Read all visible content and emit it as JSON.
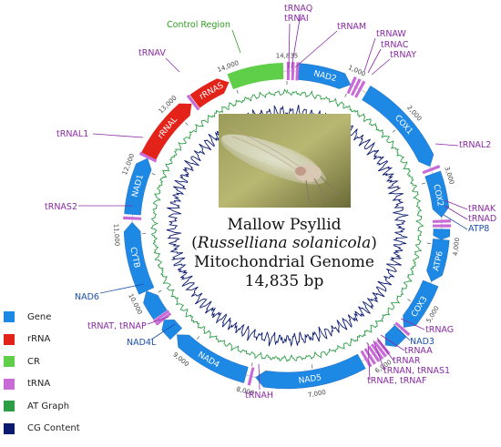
{
  "title": {
    "line1": "Mallow Psyllid",
    "line2_open": "(",
    "line2_italic": "Russelliana solanicola",
    "line2_close": ")",
    "line3": "Mitochondrial Genome",
    "line4": "14,835 bp"
  },
  "genome_length": 14835,
  "colors": {
    "gene": "#1e88e5",
    "rrna": "#e3231a",
    "cr": "#5fcf4a",
    "trna": "#c86bd6",
    "at_graph": "#2e9e46",
    "cg_content": "#0b1a6e",
    "trna_label": "#8a2aa3",
    "cr_label": "#2e9e1f"
  },
  "genes": [
    {
      "name": "NAD2",
      "start": 180,
      "end": 1000,
      "kind": "gene"
    },
    {
      "name": "COX1",
      "start": 1270,
      "end": 2780,
      "kind": "gene"
    },
    {
      "name": "COX2",
      "start": 2900,
      "end": 3580,
      "kind": "gene"
    },
    {
      "name": "ATP8",
      "start": 3760,
      "end": 3920,
      "kind": "gene"
    },
    {
      "name": "ATP6",
      "start": 3920,
      "end": 4580,
      "kind": "gene"
    },
    {
      "name": "COX3",
      "start": 4610,
      "end": 5400,
      "kind": "gene"
    },
    {
      "name": "NAD3",
      "start": 5480,
      "end": 5790,
      "kind": "gene"
    },
    {
      "name": "NAD5",
      "start": 6230,
      "end": 7900,
      "kind": "gene"
    },
    {
      "name": "NAD4",
      "start": 8050,
      "end": 9280,
      "kind": "gene"
    },
    {
      "name": "NAD4L",
      "start": 9300,
      "end": 9580,
      "kind": "gene"
    },
    {
      "name": "NAD6",
      "start": 9680,
      "end": 10100,
      "kind": "gene"
    },
    {
      "name": "CYTB",
      "start": 10100,
      "end": 11180,
      "kind": "gene"
    },
    {
      "name": "NAD1",
      "start": 11300,
      "end": 12190,
      "kind": "gene"
    },
    {
      "name": "rRNAL",
      "start": 12230,
      "end": 13270,
      "kind": "rrna"
    },
    {
      "name": "rRNAS",
      "start": 13330,
      "end": 13930,
      "kind": "rrna"
    },
    {
      "name": "",
      "start": 13950,
      "end": 14780,
      "kind": "cr"
    }
  ],
  "trnas": [
    {
      "name": "tRNAI",
      "pos": 20
    },
    {
      "name": "tRNAQ",
      "pos": 90
    },
    {
      "name": "tRNAM",
      "pos": 160
    },
    {
      "name": "tRNAW",
      "pos": 1020
    },
    {
      "name": "tRNAC",
      "pos": 1090
    },
    {
      "name": "tRNAY",
      "pos": 1160
    },
    {
      "name": "tRNAL2",
      "pos": 2830
    },
    {
      "name": "tRNAK",
      "pos": 3640
    },
    {
      "name": "tRNAD",
      "pos": 3710
    },
    {
      "name": "tRNAG",
      "pos": 5430
    },
    {
      "name": "tRNAA",
      "pos": 5830
    },
    {
      "name": "tRNAR",
      "pos": 5890
    },
    {
      "name": "tRNAN",
      "pos": 5950
    },
    {
      "name": "tRNAS1",
      "pos": 6010
    },
    {
      "name": "tRNAE",
      "pos": 6080
    },
    {
      "name": "tRNAF",
      "pos": 6150
    },
    {
      "name": "tRNAH",
      "pos": 7970
    },
    {
      "name": "tRNAT",
      "pos": 9600
    },
    {
      "name": "tRNAP",
      "pos": 9650
    },
    {
      "name": "tRNAS2",
      "pos": 11240
    },
    {
      "name": "tRNAL1",
      "pos": 12210
    },
    {
      "name": "tRNAV",
      "pos": 13300
    }
  ],
  "ticks": [
    {
      "pos": 0,
      "label": "14,835"
    },
    {
      "pos": 1000,
      "label": "1,000"
    },
    {
      "pos": 2000,
      "label": "2,000"
    },
    {
      "pos": 3000,
      "label": "3,000"
    },
    {
      "pos": 4000,
      "label": "4,000"
    },
    {
      "pos": 5000,
      "label": "5,000"
    },
    {
      "pos": 6000,
      "label": "6,000"
    },
    {
      "pos": 7000,
      "label": "7,000"
    },
    {
      "pos": 8000,
      "label": "8,000"
    },
    {
      "pos": 9000,
      "label": "9,000"
    },
    {
      "pos": 10000,
      "label": "10,000"
    },
    {
      "pos": 11000,
      "label": "11,000"
    },
    {
      "pos": 12000,
      "label": "12,000"
    },
    {
      "pos": 13000,
      "label": "13,000"
    },
    {
      "pos": 14000,
      "label": "14,000"
    }
  ],
  "outer_labels": {
    "control_region": "Control Region",
    "trnav": "tRNAV",
    "trnaq": "tRNAQ",
    "trnai": "tRNAI",
    "trnam": "tRNAM",
    "trnaw": "tRNAW",
    "trnac": "tRNAC",
    "trnay": "tRNAY",
    "trnal2": "tRNAL2",
    "trnak": "tRNAK",
    "trnad": "tRNAD",
    "atp8": "ATP8",
    "trnag": "tRNAG",
    "nad3": "NAD3",
    "trnaa": "tRNAA",
    "trnar": "tRNAR",
    "trnan_s1": "tRNAN, tRNAS1",
    "trnae_f": "tRNAE, tRNAF",
    "trnah": "tRNAH",
    "trnat_p": "tRNAT, tRNAP",
    "nad4l": "NAD4L",
    "nad6": "NAD6",
    "trnas2": "tRNAS2",
    "trnal1": "tRNAL1"
  },
  "legend": [
    {
      "label": "Gene",
      "color": "#1e88e5"
    },
    {
      "label": "rRNA",
      "color": "#e3231a"
    },
    {
      "label": "CR",
      "color": "#5fcf4a"
    },
    {
      "label": "tRNA",
      "color": "#c86bd6"
    },
    {
      "label": "AT Graph",
      "color": "#2e9e46"
    },
    {
      "label": "CG Content",
      "color": "#0b1a6e"
    }
  ]
}
